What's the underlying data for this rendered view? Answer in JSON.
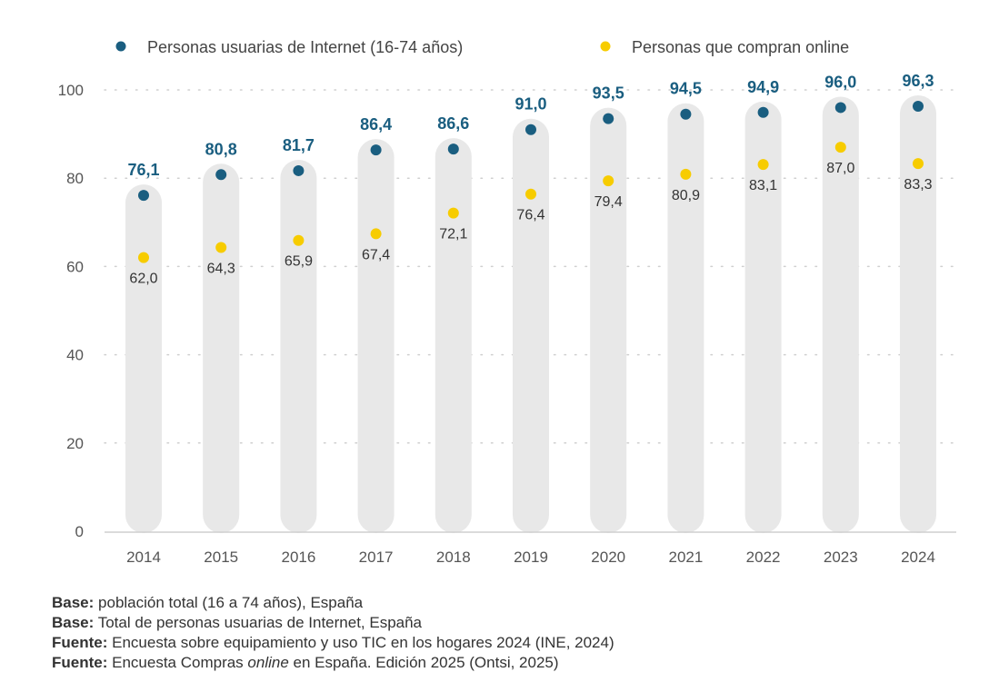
{
  "chart_data": {
    "type": "scatter",
    "categories": [
      "2014",
      "2015",
      "2016",
      "2017",
      "2018",
      "2019",
      "2020",
      "2021",
      "2022",
      "2023",
      "2024"
    ],
    "series": [
      {
        "name": "Personas usuarias de Internet (16-74 años)",
        "color": "#1a5e80",
        "values": [
          76.1,
          80.8,
          81.7,
          86.4,
          86.6,
          91.0,
          93.5,
          94.5,
          94.9,
          96.0,
          96.3
        ],
        "labels": [
          "76,1",
          "80,8",
          "81,7",
          "86,4",
          "86,6",
          "91,0",
          "93,5",
          "94,5",
          "94,9",
          "96,0",
          "96,3"
        ]
      },
      {
        "name": "Personas que compran online",
        "color": "#f7cc00",
        "values": [
          62.0,
          64.3,
          65.9,
          67.4,
          72.1,
          76.4,
          79.4,
          80.9,
          83.1,
          87.0,
          83.3
        ],
        "labels": [
          "62,0",
          "64,3",
          "65,9",
          "67,4",
          "72,1",
          "76,4",
          "79,4",
          "80,9",
          "83,1",
          "87,0",
          "83,3"
        ]
      }
    ],
    "yticks": [
      "0",
      "20",
      "40",
      "60",
      "80",
      "100"
    ],
    "ylim": [
      0,
      100
    ],
    "grid": true,
    "legend": "top",
    "bar_color": "#e8e8e8"
  },
  "notes": [
    {
      "label": "Base:",
      "text": " población total (16 a 74 años), España"
    },
    {
      "label": "Base:",
      "text": " Total de personas usuarias de Internet, España"
    },
    {
      "label": "Fuente:",
      "text": " Encuesta sobre equipamiento y uso TIC en los hogares 2024 (INE, 2024)"
    },
    {
      "label": "Fuente:",
      "text": " Encuesta Compras ",
      "italic": "online",
      "text2": " en España. Edición 2025 (Ontsi, 2025)"
    }
  ]
}
